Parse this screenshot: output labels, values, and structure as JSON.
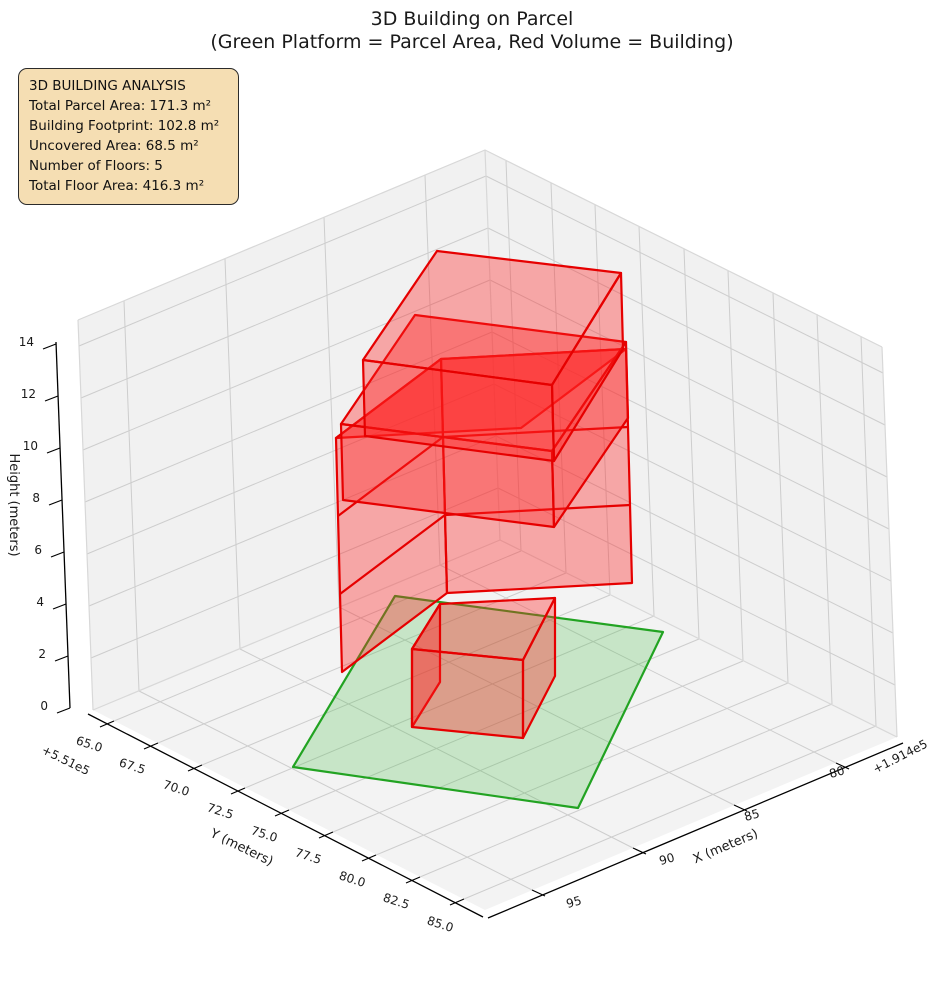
{
  "title": "3D Building on Parcel",
  "subtitle": "(Green Platform = Parcel Area, Red Volume = Building)",
  "info_box": {
    "heading": "3D BUILDING ANALYSIS",
    "line_parcel": "Total Parcel Area: 171.3 m²",
    "line_footprint": "Building Footprint: 102.8 m²",
    "line_uncovered": "Uncovered Area: 68.5 m²",
    "line_floors": "Number of Floors: 5",
    "line_floor_area": "Total Floor Area: 416.3 m²"
  },
  "chart_data": {
    "type": "3d-building-plot",
    "title": "3D Building on Parcel",
    "subtitle": "(Green Platform = Parcel Area, Red Volume = Building)",
    "analysis": {
      "total_parcel_area_m2": 171.3,
      "building_footprint_m2": 102.8,
      "uncovered_area_m2": 68.5,
      "number_of_floors": 5,
      "total_floor_area_m2": 416.3
    },
    "axes": {
      "x": {
        "label": "X (meters)",
        "offset": "+1.914e5",
        "ticks": [
          "95",
          "90",
          "85",
          "80"
        ],
        "range": [
          77,
          97.5
        ]
      },
      "y": {
        "label": "Y (meters)",
        "offset": "+5.51e5",
        "ticks": [
          "65.0",
          "67.5",
          "70.0",
          "72.5",
          "75.0",
          "77.5",
          "80.0",
          "82.5",
          "85.0"
        ],
        "range": [
          63.5,
          86
        ]
      },
      "z": {
        "label": "Height (meters)",
        "ticks": [
          "0",
          "2",
          "4",
          "6",
          "8",
          "10",
          "12",
          "14"
        ],
        "range": [
          0,
          15
        ]
      }
    },
    "building": {
      "floors": 5,
      "floor_height_m": 3,
      "edge_color": "#e60000",
      "face_color": "#ff2020",
      "face_opacity": 0.36
    },
    "parcel": {
      "edge_color": "#22a322",
      "face_color": "#2fb52f",
      "face_opacity": 0.22
    },
    "panes": {
      "wall_color": "#f1f1f1",
      "floor_color": "#f3f3f3",
      "grid_color": "#cdcdcd",
      "edge_color": "#d8d8d8"
    },
    "legend_position": "none",
    "grid": true
  }
}
